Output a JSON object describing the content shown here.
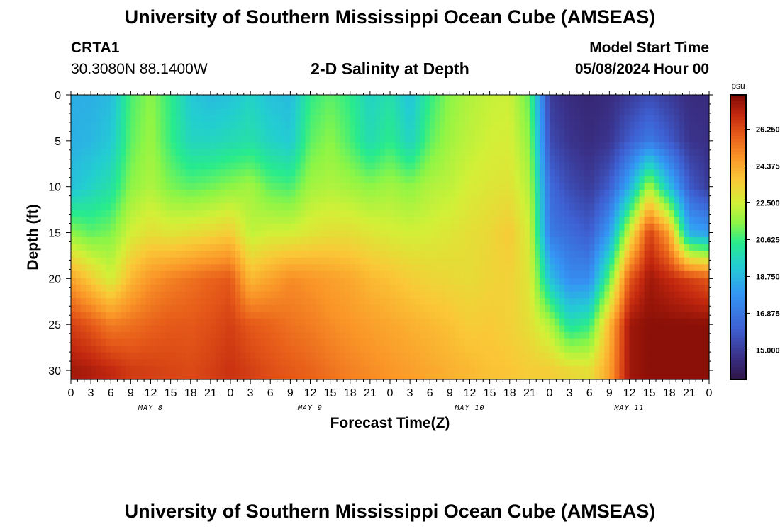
{
  "header": {
    "title": "University of Southern Mississippi Ocean Cube (AMSEAS)",
    "station_id": "CRTA1",
    "coordinates": "30.3080N  88.1400W",
    "subtitle": "2-D Salinity at Depth",
    "model_start_label": "Model Start Time",
    "model_start_value": "05/08/2024 Hour 00"
  },
  "footer": {
    "title": "University of Southern Mississippi Ocean Cube (AMSEAS)"
  },
  "colors": {
    "background": "#ffffff",
    "axis": "#000000"
  },
  "chart_data": {
    "type": "heatmap",
    "title": "2-D Salinity at Depth",
    "xlabel": "Forecast Time(Z)",
    "ylabel": "Depth (ft)",
    "x_unit": "hours since model start",
    "x_range": [
      0,
      96
    ],
    "x_tick_step_hours": 3,
    "x_tick_labels": [
      "0",
      "3",
      "6",
      "9",
      "12",
      "15",
      "18",
      "21",
      "0",
      "3",
      "6",
      "9",
      "12",
      "15",
      "18",
      "21",
      "0",
      "3",
      "6",
      "9",
      "12",
      "15",
      "18",
      "21",
      "0",
      "3",
      "6",
      "9",
      "12",
      "15",
      "18",
      "21",
      "0"
    ],
    "day_labels": [
      {
        "label": "MAY 8",
        "hour": 12
      },
      {
        "label": "MAY 9",
        "hour": 36
      },
      {
        "label": "MAY 10",
        "hour": 60
      },
      {
        "label": "MAY 11",
        "hour": 84
      }
    ],
    "y_range": [
      0,
      31
    ],
    "y_inverted": true,
    "y_ticks": [
      0,
      5,
      10,
      15,
      20,
      25,
      30
    ],
    "colorbar": {
      "unit": "psu",
      "range": [
        13.5,
        28.0
      ],
      "ticks": [
        15.0,
        16.875,
        18.75,
        20.625,
        22.5,
        24.375,
        26.25
      ],
      "tick_labels": [
        "15.000",
        "16.875",
        "18.750",
        "20.625",
        "22.500",
        "24.375",
        "26.250"
      ]
    },
    "depth_levels_ft": [
      0,
      5,
      10,
      15,
      20,
      25,
      30
    ],
    "series": [
      {
        "hour": 0,
        "salinity_psu": [
          18.5,
          18.5,
          19.0,
          21.5,
          24.5,
          26.5,
          27.5
        ]
      },
      {
        "hour": 3,
        "salinity_psu": [
          18.5,
          18.7,
          19.5,
          21.0,
          23.5,
          26.0,
          27.3
        ]
      },
      {
        "hour": 6,
        "salinity_psu": [
          18.8,
          19.2,
          20.0,
          21.3,
          22.5,
          25.3,
          27.0
        ]
      },
      {
        "hour": 9,
        "salinity_psu": [
          20.8,
          21.0,
          21.5,
          22.5,
          24.0,
          25.5,
          26.6
        ]
      },
      {
        "hour": 12,
        "salinity_psu": [
          21.5,
          21.7,
          22.0,
          23.0,
          24.8,
          25.8,
          26.5
        ]
      },
      {
        "hour": 15,
        "salinity_psu": [
          20.5,
          20.6,
          21.3,
          22.8,
          25.2,
          26.0,
          26.4
        ]
      },
      {
        "hour": 18,
        "salinity_psu": [
          19.2,
          19.6,
          21.0,
          23.0,
          25.5,
          26.0,
          26.3
        ]
      },
      {
        "hour": 21,
        "salinity_psu": [
          18.8,
          19.6,
          21.2,
          23.2,
          25.8,
          26.2,
          26.5
        ]
      },
      {
        "hour": 24,
        "salinity_psu": [
          19.0,
          19.8,
          21.5,
          23.5,
          26.0,
          26.5,
          26.8
        ]
      },
      {
        "hour": 27,
        "salinity_psu": [
          19.5,
          20.0,
          21.8,
          22.2,
          24.0,
          26.0,
          26.5
        ]
      },
      {
        "hour": 30,
        "salinity_psu": [
          19.0,
          19.5,
          21.0,
          22.5,
          24.5,
          25.8,
          26.2
        ]
      },
      {
        "hour": 33,
        "salinity_psu": [
          18.8,
          19.2,
          20.8,
          22.5,
          25.0,
          25.5,
          26.0
        ]
      },
      {
        "hour": 36,
        "salinity_psu": [
          20.5,
          21.0,
          21.8,
          22.8,
          24.8,
          25.3,
          25.8
        ]
      },
      {
        "hour": 39,
        "salinity_psu": [
          21.0,
          21.5,
          22.0,
          23.0,
          24.6,
          25.0,
          25.5
        ]
      },
      {
        "hour": 42,
        "salinity_psu": [
          20.5,
          20.8,
          21.8,
          23.0,
          24.4,
          24.8,
          25.2
        ]
      },
      {
        "hour": 45,
        "salinity_psu": [
          19.5,
          19.8,
          21.5,
          22.8,
          24.0,
          24.6,
          25.0
        ]
      },
      {
        "hour": 48,
        "salinity_psu": [
          20.0,
          20.5,
          21.8,
          22.6,
          23.8,
          24.4,
          24.8
        ]
      },
      {
        "hour": 51,
        "salinity_psu": [
          19.0,
          19.5,
          21.5,
          22.5,
          23.5,
          24.2,
          24.6
        ]
      },
      {
        "hour": 54,
        "salinity_psu": [
          20.5,
          21.0,
          22.0,
          22.6,
          23.3,
          24.0,
          24.4
        ]
      },
      {
        "hour": 57,
        "salinity_psu": [
          21.5,
          21.8,
          22.2,
          22.8,
          23.2,
          23.8,
          24.2
        ]
      },
      {
        "hour": 60,
        "salinity_psu": [
          22.0,
          22.2,
          22.6,
          23.0,
          23.1,
          23.5,
          24.0
        ]
      },
      {
        "hour": 63,
        "salinity_psu": [
          22.3,
          22.5,
          22.8,
          23.2,
          23.3,
          23.6,
          23.8
        ]
      },
      {
        "hour": 66,
        "salinity_psu": [
          22.4,
          22.6,
          22.9,
          23.6,
          23.4,
          23.4,
          23.7
        ]
      },
      {
        "hour": 69,
        "salinity_psu": [
          21.0,
          21.5,
          22.0,
          22.5,
          22.8,
          23.0,
          23.5
        ]
      },
      {
        "hour": 72,
        "salinity_psu": [
          15.0,
          15.5,
          16.5,
          17.0,
          19.0,
          22.0,
          23.5
        ]
      },
      {
        "hour": 75,
        "salinity_psu": [
          14.5,
          14.8,
          15.5,
          16.5,
          17.5,
          20.0,
          23.2
        ]
      },
      {
        "hour": 78,
        "salinity_psu": [
          14.3,
          14.5,
          15.0,
          16.0,
          17.5,
          20.5,
          23.0
        ]
      },
      {
        "hour": 81,
        "salinity_psu": [
          14.5,
          14.8,
          16.0,
          18.0,
          21.0,
          24.0,
          24.5
        ]
      },
      {
        "hour": 84,
        "salinity_psu": [
          15.0,
          16.0,
          18.5,
          22.5,
          26.0,
          27.5,
          27.5
        ]
      },
      {
        "hour": 87,
        "salinity_psu": [
          15.5,
          17.0,
          22.0,
          26.5,
          27.5,
          27.8,
          27.8
        ]
      },
      {
        "hour": 90,
        "salinity_psu": [
          15.0,
          16.0,
          19.0,
          24.5,
          27.0,
          27.8,
          27.8
        ]
      },
      {
        "hour": 93,
        "salinity_psu": [
          14.5,
          14.8,
          16.0,
          18.5,
          26.5,
          27.8,
          27.8
        ]
      },
      {
        "hour": 96,
        "salinity_psu": [
          14.5,
          14.6,
          15.0,
          18.0,
          26.0,
          27.8,
          27.8
        ]
      }
    ]
  }
}
